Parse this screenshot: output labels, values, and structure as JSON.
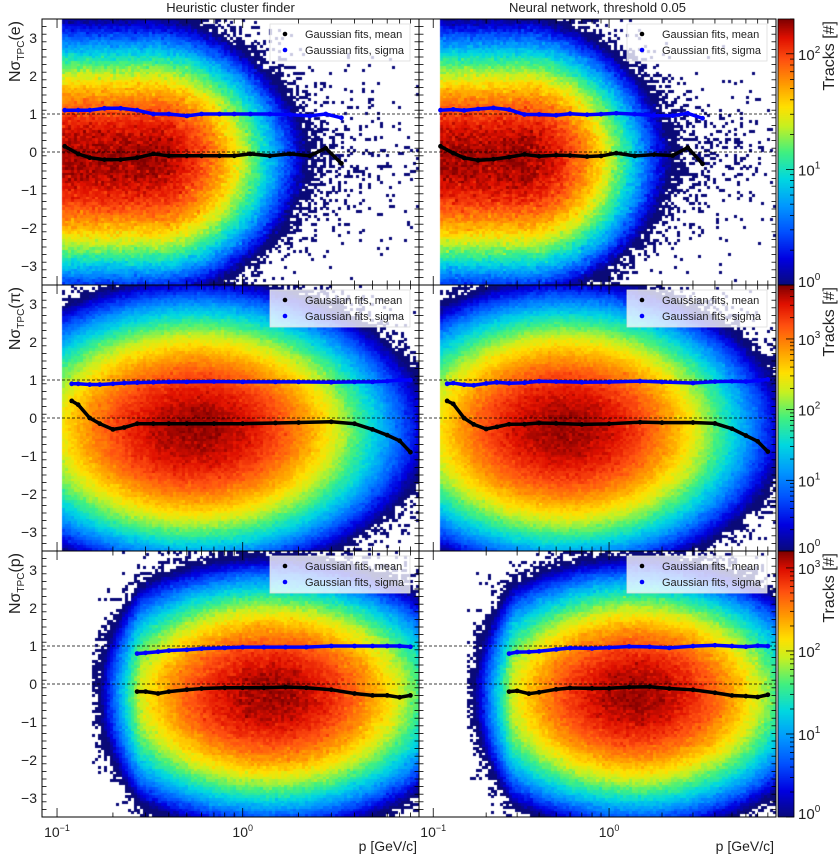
{
  "chart_data": {
    "type": "heatmap",
    "columns": [
      {
        "title": "Heuristic cluster finder"
      },
      {
        "title": "Neural network, threshold 0.05"
      }
    ],
    "xlabel": "p [GeV/c]",
    "xscale": "log",
    "xlim": [
      0.083,
      8.9
    ],
    "x_ticks": [
      {
        "value": 0.1,
        "base": "10",
        "exp": "-1"
      },
      {
        "value": 1,
        "base": "10",
        "exp": "0"
      }
    ],
    "ylim": [
      -3.5,
      3.5
    ],
    "y_ticks": [
      -3,
      -2,
      -1,
      0,
      1,
      2,
      3
    ],
    "reference_lines": [
      0,
      1
    ],
    "legend": {
      "mean": "Gaussian fits, mean",
      "sigma": "Gaussian fits, sigma",
      "placement": "top-right"
    },
    "colorbar_title": "Tracks [#]",
    "colors": {
      "mean": "#000000",
      "sigma": "#0000ff"
    },
    "rows": [
      {
        "species": "e",
        "ylabel": {
          "main": "Nσ",
          "sub": "TPC",
          "particle": "(e)"
        },
        "z_range": [
          1,
          200
        ],
        "z_ticks": [
          {
            "base": "10",
            "exp": "0"
          },
          {
            "base": "10",
            "exp": "1"
          },
          {
            "base": "10",
            "exp": "2"
          }
        ],
        "fit_p": [
          0.11,
          0.13,
          0.15,
          0.18,
          0.22,
          0.27,
          0.33,
          0.4,
          0.5,
          0.6,
          0.75,
          0.9,
          1.1,
          1.4,
          1.8,
          2.3,
          2.8,
          3.4
        ],
        "fit_mean": [
          0.15,
          -0.05,
          -0.15,
          -0.2,
          -0.2,
          -0.15,
          -0.05,
          -0.1,
          -0.1,
          -0.1,
          -0.1,
          -0.1,
          -0.05,
          -0.1,
          -0.05,
          -0.1,
          0.1,
          -0.3
        ],
        "fit_sigma": [
          1.1,
          1.1,
          1.1,
          1.15,
          1.15,
          1.1,
          1.0,
          1.0,
          0.95,
          1.0,
          1.0,
          1.0,
          1.0,
          1.0,
          0.98,
          0.95,
          1.0,
          0.9
        ]
      },
      {
        "species": "pi",
        "ylabel": {
          "main": "Nσ",
          "sub": "TPC",
          "particle": "(π)"
        },
        "z_range": [
          1,
          5800
        ],
        "z_ticks": [
          {
            "base": "10",
            "exp": "0"
          },
          {
            "base": "10",
            "exp": "1"
          },
          {
            "base": "10",
            "exp": "2"
          },
          {
            "base": "10",
            "exp": "3"
          }
        ],
        "fit_p": [
          0.12,
          0.13,
          0.15,
          0.17,
          0.2,
          0.23,
          0.27,
          0.33,
          0.4,
          0.5,
          0.7,
          1.0,
          1.5,
          2.0,
          3.0,
          4.0,
          5.0,
          6.0,
          7.0,
          8.0
        ],
        "fit_mean": [
          0.45,
          0.35,
          0.0,
          -0.15,
          -0.3,
          -0.25,
          -0.15,
          -0.15,
          -0.15,
          -0.15,
          -0.15,
          -0.15,
          -0.13,
          -0.12,
          -0.1,
          -0.15,
          -0.3,
          -0.45,
          -0.6,
          -0.9
        ],
        "fit_sigma": [
          0.9,
          0.9,
          0.88,
          0.88,
          0.9,
          0.92,
          0.93,
          0.94,
          0.95,
          0.95,
          0.96,
          0.95,
          0.95,
          0.95,
          0.94,
          0.95,
          0.95,
          0.97,
          1.0,
          1.0
        ]
      },
      {
        "species": "p",
        "ylabel": {
          "main": "Nσ",
          "sub": "TPC",
          "particle": "(p)"
        },
        "z_range": [
          1,
          1600
        ],
        "z_ticks": [
          {
            "base": "10",
            "exp": "0"
          },
          {
            "base": "10",
            "exp": "1"
          },
          {
            "base": "10",
            "exp": "2"
          },
          {
            "base": "10",
            "exp": "3"
          }
        ],
        "fit_p": [
          0.27,
          0.3,
          0.35,
          0.4,
          0.5,
          0.6,
          0.8,
          1.0,
          1.3,
          1.7,
          2.2,
          3.0,
          4.0,
          5.0,
          6.0,
          7.0,
          8.0
        ],
        "fit_mean": [
          -0.2,
          -0.2,
          -0.25,
          -0.2,
          -0.15,
          -0.12,
          -0.1,
          -0.1,
          -0.1,
          -0.08,
          -0.1,
          -0.15,
          -0.25,
          -0.3,
          -0.3,
          -0.35,
          -0.3
        ],
        "fit_sigma": [
          0.8,
          0.82,
          0.85,
          0.88,
          0.9,
          0.93,
          0.95,
          0.97,
          0.97,
          0.97,
          0.97,
          1.0,
          1.0,
          1.0,
          1.0,
          1.0,
          0.98
        ]
      }
    ]
  }
}
